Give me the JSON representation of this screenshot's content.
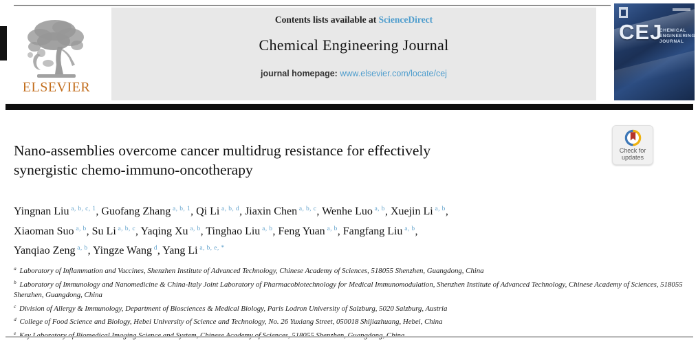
{
  "header": {
    "contents_prefix": "Contents lists available at",
    "contents_link": "ScienceDirect",
    "journal_title": "Chemical Engineering Journal",
    "homepage_prefix": "journal homepage:",
    "homepage_link": "www.elsevier.com/locate/cej",
    "publisher": "ELSEVIER"
  },
  "cover": {
    "abbr": "CEJ",
    "name_lines": [
      "CHEMICAL",
      "ENGINEERING",
      "JOURNAL"
    ]
  },
  "update_badge": {
    "label_line1": "Check for",
    "label_line2": "updates"
  },
  "article": {
    "title_lines": [
      "Nano-assemblies overcome cancer multidrug resistance for effectively",
      "synergistic chemo-immuno-oncotherapy"
    ],
    "author_lines": [
      [
        {
          "name": "Yingnan Liu",
          "sup": "a, b, c, 1",
          "trail": ", "
        },
        {
          "name": "Guofang Zhang",
          "sup": "a, b, 1",
          "trail": ", "
        },
        {
          "name": "Qi Li",
          "sup": "a, b, d",
          "trail": ", "
        },
        {
          "name": "Jiaxin Chen",
          "sup": "a, b, c",
          "trail": ", "
        },
        {
          "name": "Wenhe Luo",
          "sup": "a, b",
          "trail": ", "
        },
        {
          "name": "Xuejin Li",
          "sup": "a, b",
          "trail": ","
        }
      ],
      [
        {
          "name": "Xiaoman Suo",
          "sup": "a, b",
          "trail": ", "
        },
        {
          "name": "Su Li",
          "sup": "a, b, c",
          "trail": ", "
        },
        {
          "name": "Yaqing Xu",
          "sup": "a, b",
          "trail": ", "
        },
        {
          "name": "Tinghao Liu",
          "sup": "a, b",
          "trail": ", "
        },
        {
          "name": "Feng Yuan",
          "sup": "a, b",
          "trail": ", "
        },
        {
          "name": "Fangfang Liu",
          "sup": "a, b",
          "trail": ","
        }
      ],
      [
        {
          "name": "Yanqiao Zeng",
          "sup": "a, b",
          "trail": ", "
        },
        {
          "name": "Yingze Wang",
          "sup": "d",
          "trail": ", "
        },
        {
          "name": "Yang Li",
          "sup": "a, b, e, *",
          "trail": ""
        }
      ]
    ],
    "affiliations": [
      {
        "sup": "a",
        "text": "Laboratory of Inflammation and Vaccines, Shenzhen Institute of Advanced Technology, Chinese Academy of Sciences, 518055 Shenzhen, Guangdong, China"
      },
      {
        "sup": "b",
        "text": "Laboratory of Immunology and Nanomedicine & China-Italy Joint Laboratory of Pharmacobiotechnology for Medical Immunomodulation, Shenzhen Institute of Advanced Technology, Chinese Academy of Sciences, 518055 Shenzhen, Guangdong, China"
      },
      {
        "sup": "c",
        "text": "Division of Allergy & Immunology, Department of Biosciences & Medical Biology, Paris Lodron University of Salzburg, 5020 Salzburg, Austria"
      },
      {
        "sup": "d",
        "text": "College of Food Science and Biology, Hebei University of Science and Technology, No. 26 Yuxiang Street, 050018 Shijiazhuang, Hebei, China"
      },
      {
        "sup": "e",
        "text": "Key Laboratory of Biomedical Imaging Science and System, Chinese Academy of Sciences, 518055 Shenzhen, Guangdong, China"
      }
    ]
  },
  "colors": {
    "link_blue": "#4e9dcd",
    "superscript_blue": "#63a3cc",
    "elsevier_orange": "#c26d1c",
    "cover_navy": "#1b3055",
    "badge_ring_blue": "#3d77b7",
    "badge_ring_yellow": "#eeb211",
    "badge_bookmark_red": "#b5342a"
  }
}
